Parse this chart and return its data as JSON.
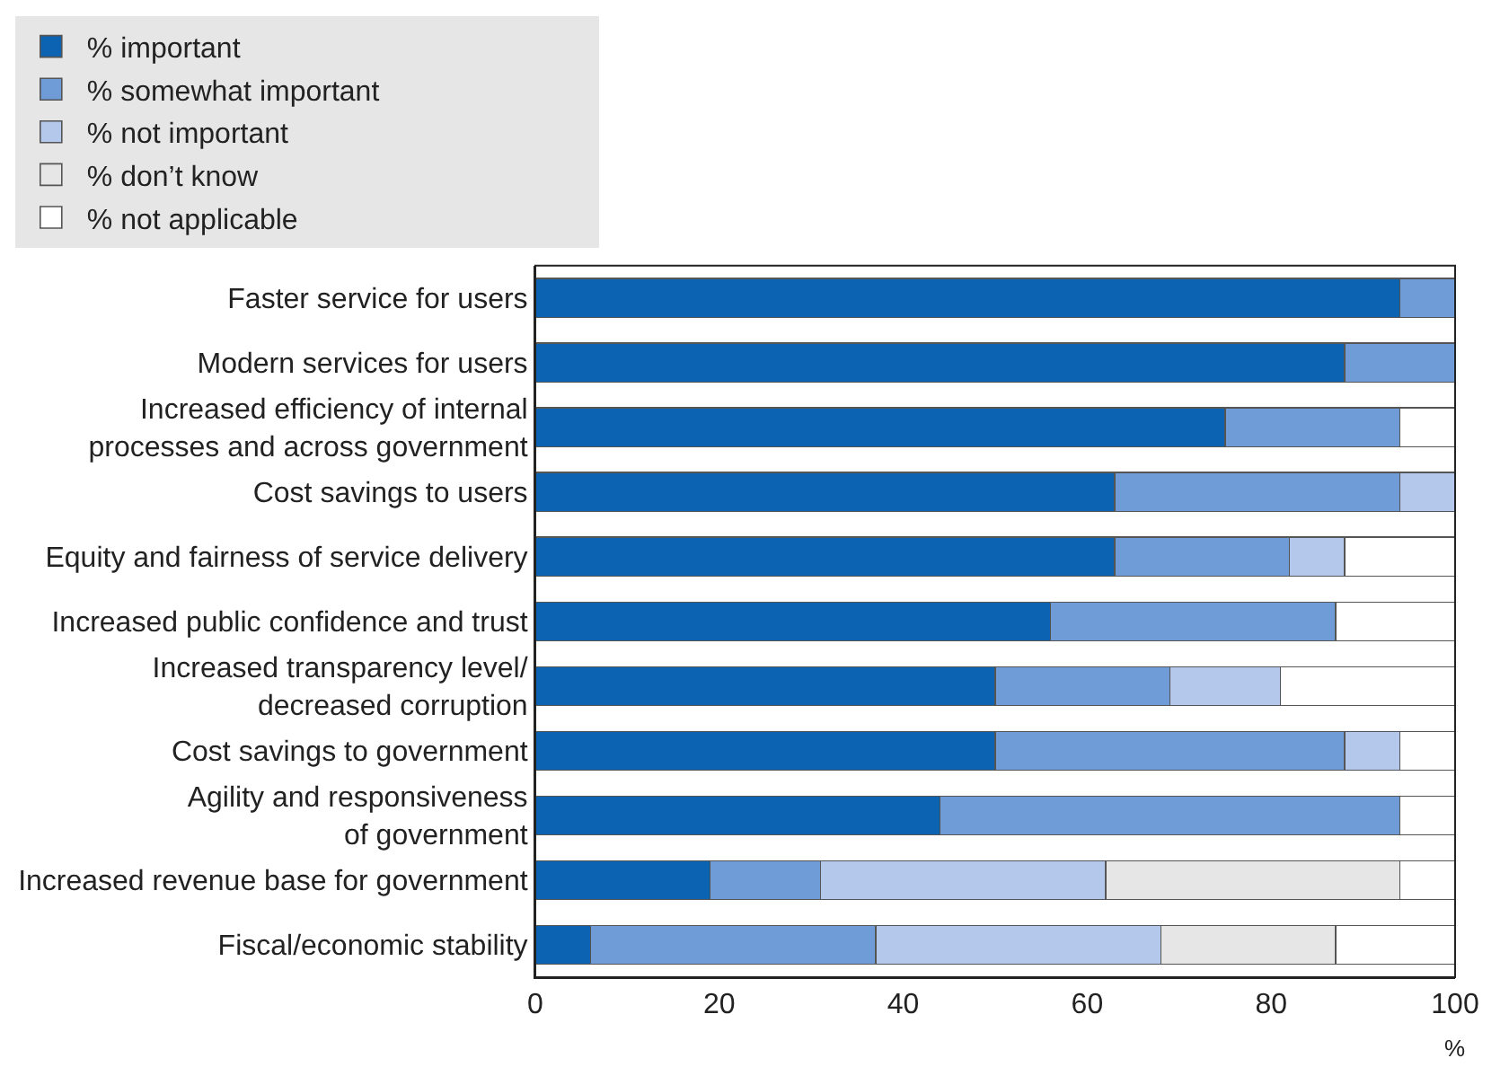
{
  "chart_data": {
    "type": "bar",
    "orientation": "horizontal",
    "stacked": true,
    "legend": "top",
    "xlabel": "%",
    "xlim": [
      0,
      100
    ],
    "xticks": [
      0,
      20,
      40,
      60,
      80,
      100
    ],
    "categories": [
      "Faster service for users",
      "Modern services for users",
      "Increased efficiency of internal\nprocesses and across government",
      "Cost savings to users",
      "Equity and fairness of service delivery",
      "Increased public confidence and trust",
      "Increased transparency level/\ndecreased corruption",
      "Cost savings to government",
      "Agility and responsiveness\nof government",
      "Increased revenue base for government",
      "Fiscal/economic stability"
    ],
    "series": [
      {
        "name": "% important",
        "color": "#0b63b1",
        "values": [
          94,
          88,
          75,
          63,
          63,
          56,
          50,
          50,
          44,
          19,
          6
        ]
      },
      {
        "name": "% somewhat important",
        "color": "#6f9bd6",
        "values": [
          6,
          12,
          19,
          31,
          19,
          31,
          19,
          38,
          50,
          12,
          31
        ]
      },
      {
        "name": "% not important",
        "color": "#b3c8ea",
        "values": [
          null,
          null,
          null,
          6,
          6,
          null,
          12,
          6,
          null,
          31,
          31
        ]
      },
      {
        "name": "% don’t know",
        "color": "#e6e6e6",
        "values": [
          null,
          null,
          null,
          null,
          null,
          null,
          null,
          null,
          null,
          32,
          19
        ]
      },
      {
        "name": "% not applicable",
        "color": "#ffffff",
        "values": [
          null,
          null,
          6,
          null,
          12,
          13,
          19,
          6,
          6,
          6,
          13
        ]
      }
    ]
  }
}
